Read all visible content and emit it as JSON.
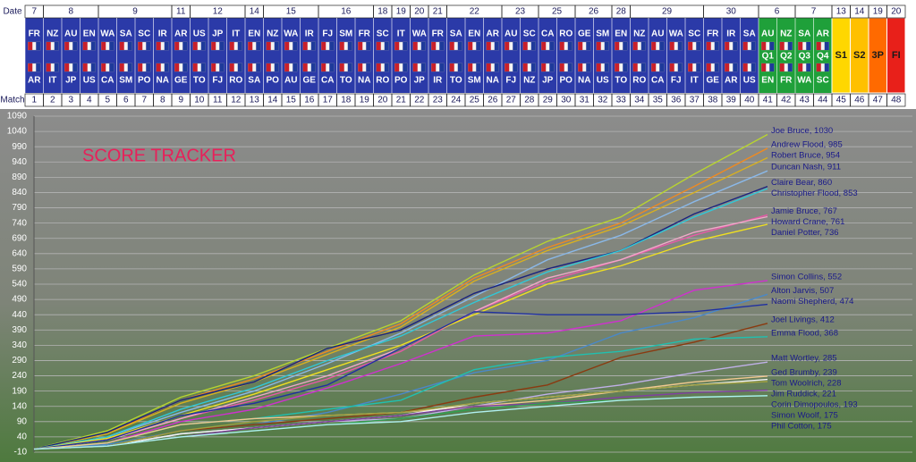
{
  "header": {
    "date_label": "Date",
    "match_label": "Match",
    "dates": [
      {
        "label": "7",
        "span": 1
      },
      {
        "label": "8",
        "span": 3
      },
      {
        "label": "9",
        "span": 4
      },
      {
        "label": "11",
        "span": 1
      },
      {
        "label": "12",
        "span": 3
      },
      {
        "label": "14",
        "span": 1
      },
      {
        "label": "15",
        "span": 3
      },
      {
        "label": "16",
        "span": 3
      },
      {
        "label": "18",
        "span": 1
      },
      {
        "label": "19",
        "span": 1
      },
      {
        "label": "20",
        "span": 1
      },
      {
        "label": "21",
        "span": 1
      },
      {
        "label": "22",
        "span": 3
      },
      {
        "label": "23",
        "span": 2
      },
      {
        "label": "25",
        "span": 2
      },
      {
        "label": "26",
        "span": 2
      },
      {
        "label": "28",
        "span": 1
      },
      {
        "label": "29",
        "span": 4
      },
      {
        "label": "30",
        "span": 3
      },
      {
        "label": "6",
        "span": 2
      },
      {
        "label": "7",
        "span": 2
      },
      {
        "label": "13",
        "span": 1
      },
      {
        "label": "14",
        "span": 1
      },
      {
        "label": "19",
        "span": 1
      },
      {
        "label": "20",
        "span": 1
      }
    ],
    "teams_top": [
      "FR",
      "NZ",
      "AU",
      "EN",
      "WA",
      "SA",
      "SC",
      "IR",
      "AR",
      "US",
      "JP",
      "IT",
      "EN",
      "NZ",
      "WA",
      "IR",
      "FJ",
      "SM",
      "FR",
      "SC",
      "IT",
      "WA",
      "FR",
      "SA",
      "EN",
      "AR",
      "AU",
      "SC",
      "CA",
      "RO",
      "GE",
      "SM",
      "EN",
      "NZ",
      "AU",
      "WA",
      "SC",
      "FR",
      "IR",
      "SA",
      "AU",
      "NZ",
      "SA",
      "AR"
    ],
    "teams_bottom": [
      "AR",
      "IT",
      "JP",
      "US",
      "CA",
      "SM",
      "PO",
      "NA",
      "GE",
      "TO",
      "FJ",
      "RO",
      "SA",
      "PO",
      "AU",
      "GE",
      "CA",
      "TO",
      "NA",
      "RO",
      "PO",
      "JP",
      "IR",
      "TO",
      "SM",
      "NA",
      "FJ",
      "NZ",
      "JP",
      "PO",
      "NA",
      "US",
      "TO",
      "RO",
      "CA",
      "FJ",
      "IT",
      "GE",
      "AR",
      "US",
      "EN",
      "FR",
      "WA",
      "SC"
    ],
    "quarter_labels": [
      "Q1",
      "Q2",
      "Q3",
      "Q4"
    ],
    "finals": [
      {
        "label": "S1",
        "color": "#ffd700"
      },
      {
        "label": "S2",
        "color": "#ffc000"
      },
      {
        "label": "3P",
        "color": "#ff6a00"
      },
      {
        "label": "FI",
        "color": "#e8201a"
      }
    ],
    "matches": [
      1,
      2,
      3,
      4,
      5,
      6,
      7,
      8,
      9,
      10,
      11,
      12,
      13,
      14,
      15,
      16,
      17,
      18,
      19,
      20,
      21,
      22,
      23,
      24,
      25,
      26,
      27,
      28,
      29,
      30,
      31,
      32,
      33,
      34,
      35,
      36,
      37,
      38,
      39,
      40,
      41,
      42,
      43,
      44,
      45,
      46,
      47,
      48
    ]
  },
  "chart_data": {
    "type": "line",
    "title": "SCORE TRACKER",
    "x": [
      0,
      4,
      8,
      12,
      16,
      20,
      24,
      28,
      32,
      36,
      40
    ],
    "xlim": [
      0,
      48
    ],
    "ylim": [
      -10,
      1090
    ],
    "yticks": [
      -10,
      40,
      90,
      140,
      190,
      240,
      290,
      340,
      390,
      440,
      490,
      540,
      590,
      640,
      690,
      740,
      790,
      840,
      890,
      940,
      990,
      1040,
      1090
    ],
    "grid": true,
    "series": [
      {
        "name": "Joe Bruce, 1030",
        "color": "#b8d430",
        "values": [
          0,
          60,
          170,
          240,
          330,
          420,
          570,
          680,
          760,
          900,
          1030
        ]
      },
      {
        "name": "Andrew Flood, 985",
        "color": "#f08a20",
        "values": [
          0,
          50,
          160,
          230,
          320,
          410,
          560,
          660,
          740,
          860,
          985
        ]
      },
      {
        "name": "Robert Bruce, 954",
        "color": "#d8b020",
        "values": [
          0,
          50,
          150,
          220,
          310,
          400,
          550,
          650,
          730,
          840,
          954
        ]
      },
      {
        "name": "Duncan Nash, 911",
        "color": "#8ab8e8",
        "values": [
          0,
          40,
          120,
          190,
          280,
          380,
          500,
          620,
          700,
          810,
          911
        ]
      },
      {
        "name": "Claire Bear, 860",
        "color": "#1a237e",
        "values": [
          0,
          55,
          160,
          220,
          330,
          390,
          510,
          590,
          650,
          770,
          860
        ]
      },
      {
        "name": "Christopher Flood, 853",
        "color": "#30c8d8",
        "values": [
          0,
          40,
          130,
          200,
          290,
          370,
          480,
          580,
          650,
          760,
          853
        ]
      },
      {
        "name": "Jamie Bruce, 767",
        "color": "#e858a8",
        "values": [
          0,
          30,
          100,
          160,
          230,
          320,
          450,
          550,
          620,
          700,
          767
        ]
      },
      {
        "name": "Howard Crane, 761",
        "color": "#f0a8c8",
        "values": [
          0,
          30,
          100,
          170,
          240,
          330,
          450,
          560,
          620,
          710,
          761
        ]
      },
      {
        "name": "Daniel Potter, 736",
        "color": "#f0e020",
        "values": [
          0,
          35,
          110,
          180,
          260,
          340,
          440,
          540,
          600,
          680,
          736
        ]
      },
      {
        "name": "Simon Collins, 552",
        "color": "#d030d0",
        "values": [
          0,
          20,
          90,
          130,
          200,
          280,
          370,
          380,
          420,
          520,
          552
        ]
      },
      {
        "name": "Alton Jarvis, 507",
        "color": "#4a88c8",
        "values": [
          0,
          15,
          60,
          80,
          120,
          180,
          250,
          290,
          380,
          430,
          507
        ]
      },
      {
        "name": "Naomi Shepherd, 474",
        "color": "#2030a0",
        "values": [
          0,
          30,
          110,
          150,
          210,
          330,
          450,
          440,
          440,
          450,
          474
        ]
      },
      {
        "name": "Joel Livings, 412",
        "color": "#8a3a10",
        "values": [
          0,
          10,
          60,
          80,
          100,
          120,
          170,
          210,
          300,
          350,
          412
        ]
      },
      {
        "name": "Emma Flood, 368",
        "color": "#20c0b0",
        "values": [
          0,
          20,
          80,
          100,
          130,
          160,
          260,
          300,
          320,
          360,
          368
        ]
      },
      {
        "name": "Matt Wortley, 285",
        "color": "#c0b0e8",
        "values": [
          0,
          10,
          50,
          70,
          90,
          100,
          140,
          180,
          210,
          250,
          285
        ]
      },
      {
        "name": "Ged Brumby, 239",
        "color": "#f0c890",
        "values": [
          0,
          20,
          80,
          100,
          110,
          120,
          140,
          160,
          190,
          220,
          239
        ]
      },
      {
        "name": "Tom Woolrich, 228",
        "color": "#f4f4f4",
        "values": [
          0,
          10,
          50,
          70,
          90,
          110,
          150,
          170,
          190,
          210,
          228
        ]
      },
      {
        "name": "Jim Ruddick, 221",
        "color": "#a0a040",
        "values": [
          0,
          10,
          60,
          90,
          110,
          120,
          150,
          170,
          190,
          210,
          221
        ]
      },
      {
        "name": "Corin Dimopoulos, 193",
        "color": "#8040a0",
        "values": [
          0,
          10,
          40,
          70,
          90,
          110,
          140,
          150,
          170,
          185,
          193
        ]
      },
      {
        "name": "Simon Woolf, 175",
        "color": "#30a050",
        "values": [
          0,
          10,
          40,
          60,
          80,
          100,
          130,
          150,
          160,
          170,
          175
        ]
      },
      {
        "name": "Phil Cotton, 175",
        "color": "#b0f0f0",
        "values": [
          0,
          10,
          40,
          60,
          80,
          90,
          120,
          140,
          160,
          170,
          175
        ]
      }
    ]
  }
}
